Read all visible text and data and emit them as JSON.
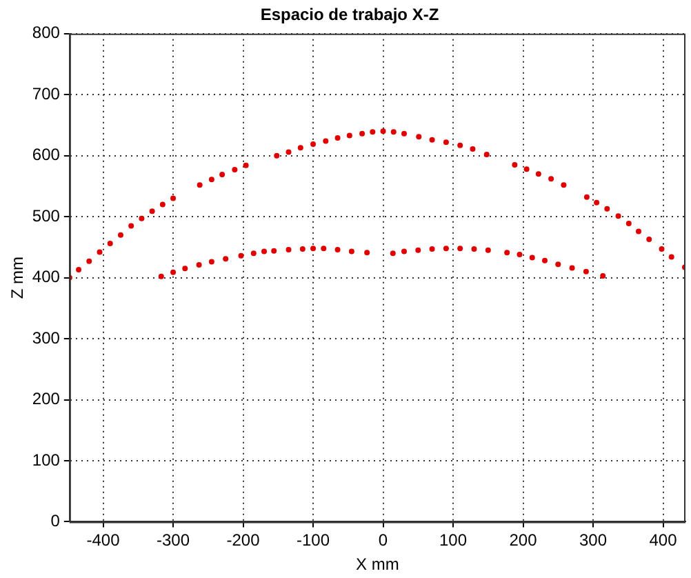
{
  "chart_data": {
    "type": "scatter",
    "title": "Espacio de trabajo X-Z",
    "xlabel": "X mm",
    "ylabel": "Z mm",
    "xlim": [
      -448,
      432
    ],
    "xticks": [
      -400,
      -300,
      -200,
      -100,
      0,
      100,
      200,
      300,
      400
    ],
    "ylim": [
      0,
      800
    ],
    "yticks": [
      0,
      100,
      200,
      300,
      400,
      500,
      600,
      700,
      800
    ],
    "grid": true,
    "marker": "circle",
    "legend": false,
    "series": [
      {
        "color": "#e00000",
        "x": [
          -448,
          -435,
          -420,
          -405,
          -390,
          -375,
          -360,
          -345,
          -330,
          -315,
          -300,
          -262,
          -245,
          -230,
          -212,
          -196,
          -152,
          -135,
          -118,
          -100,
          -82,
          -65,
          -48,
          -30,
          -15,
          0,
          15,
          30,
          51,
          70,
          90,
          110,
          128,
          148,
          188,
          205,
          222,
          240,
          258,
          291,
          305,
          320,
          336,
          351,
          365,
          380,
          398,
          412,
          431
        ],
        "values": [
          400,
          413,
          427,
          442,
          456,
          470,
          485,
          497,
          509,
          520,
          530,
          552,
          561,
          569,
          577,
          584,
          600,
          606,
          613,
          619,
          624,
          629,
          633,
          636,
          639,
          640,
          639,
          636,
          631,
          626,
          622,
          617,
          611,
          602,
          585,
          578,
          570,
          562,
          552,
          532,
          523,
          513,
          501,
          489,
          476,
          463,
          447,
          434,
          417
        ]
      },
      {
        "color": "#e00000",
        "x": [
          -317,
          -300,
          -283,
          -263,
          -245,
          -225,
          -203,
          -185,
          -170,
          -156,
          -135,
          -115,
          -100,
          -85,
          -65,
          -45,
          -23,
          14,
          30,
          50,
          70,
          90,
          110,
          130,
          150,
          177,
          195,
          213,
          231,
          250,
          270,
          290,
          314
        ],
        "values": [
          402,
          409,
          415,
          421,
          426,
          431,
          436,
          440,
          443,
          444,
          446,
          447,
          448,
          448,
          446,
          443,
          441,
          440,
          443,
          445,
          447,
          448,
          448,
          447,
          445,
          441,
          438,
          433,
          428,
          422,
          416,
          410,
          403
        ]
      }
    ]
  }
}
